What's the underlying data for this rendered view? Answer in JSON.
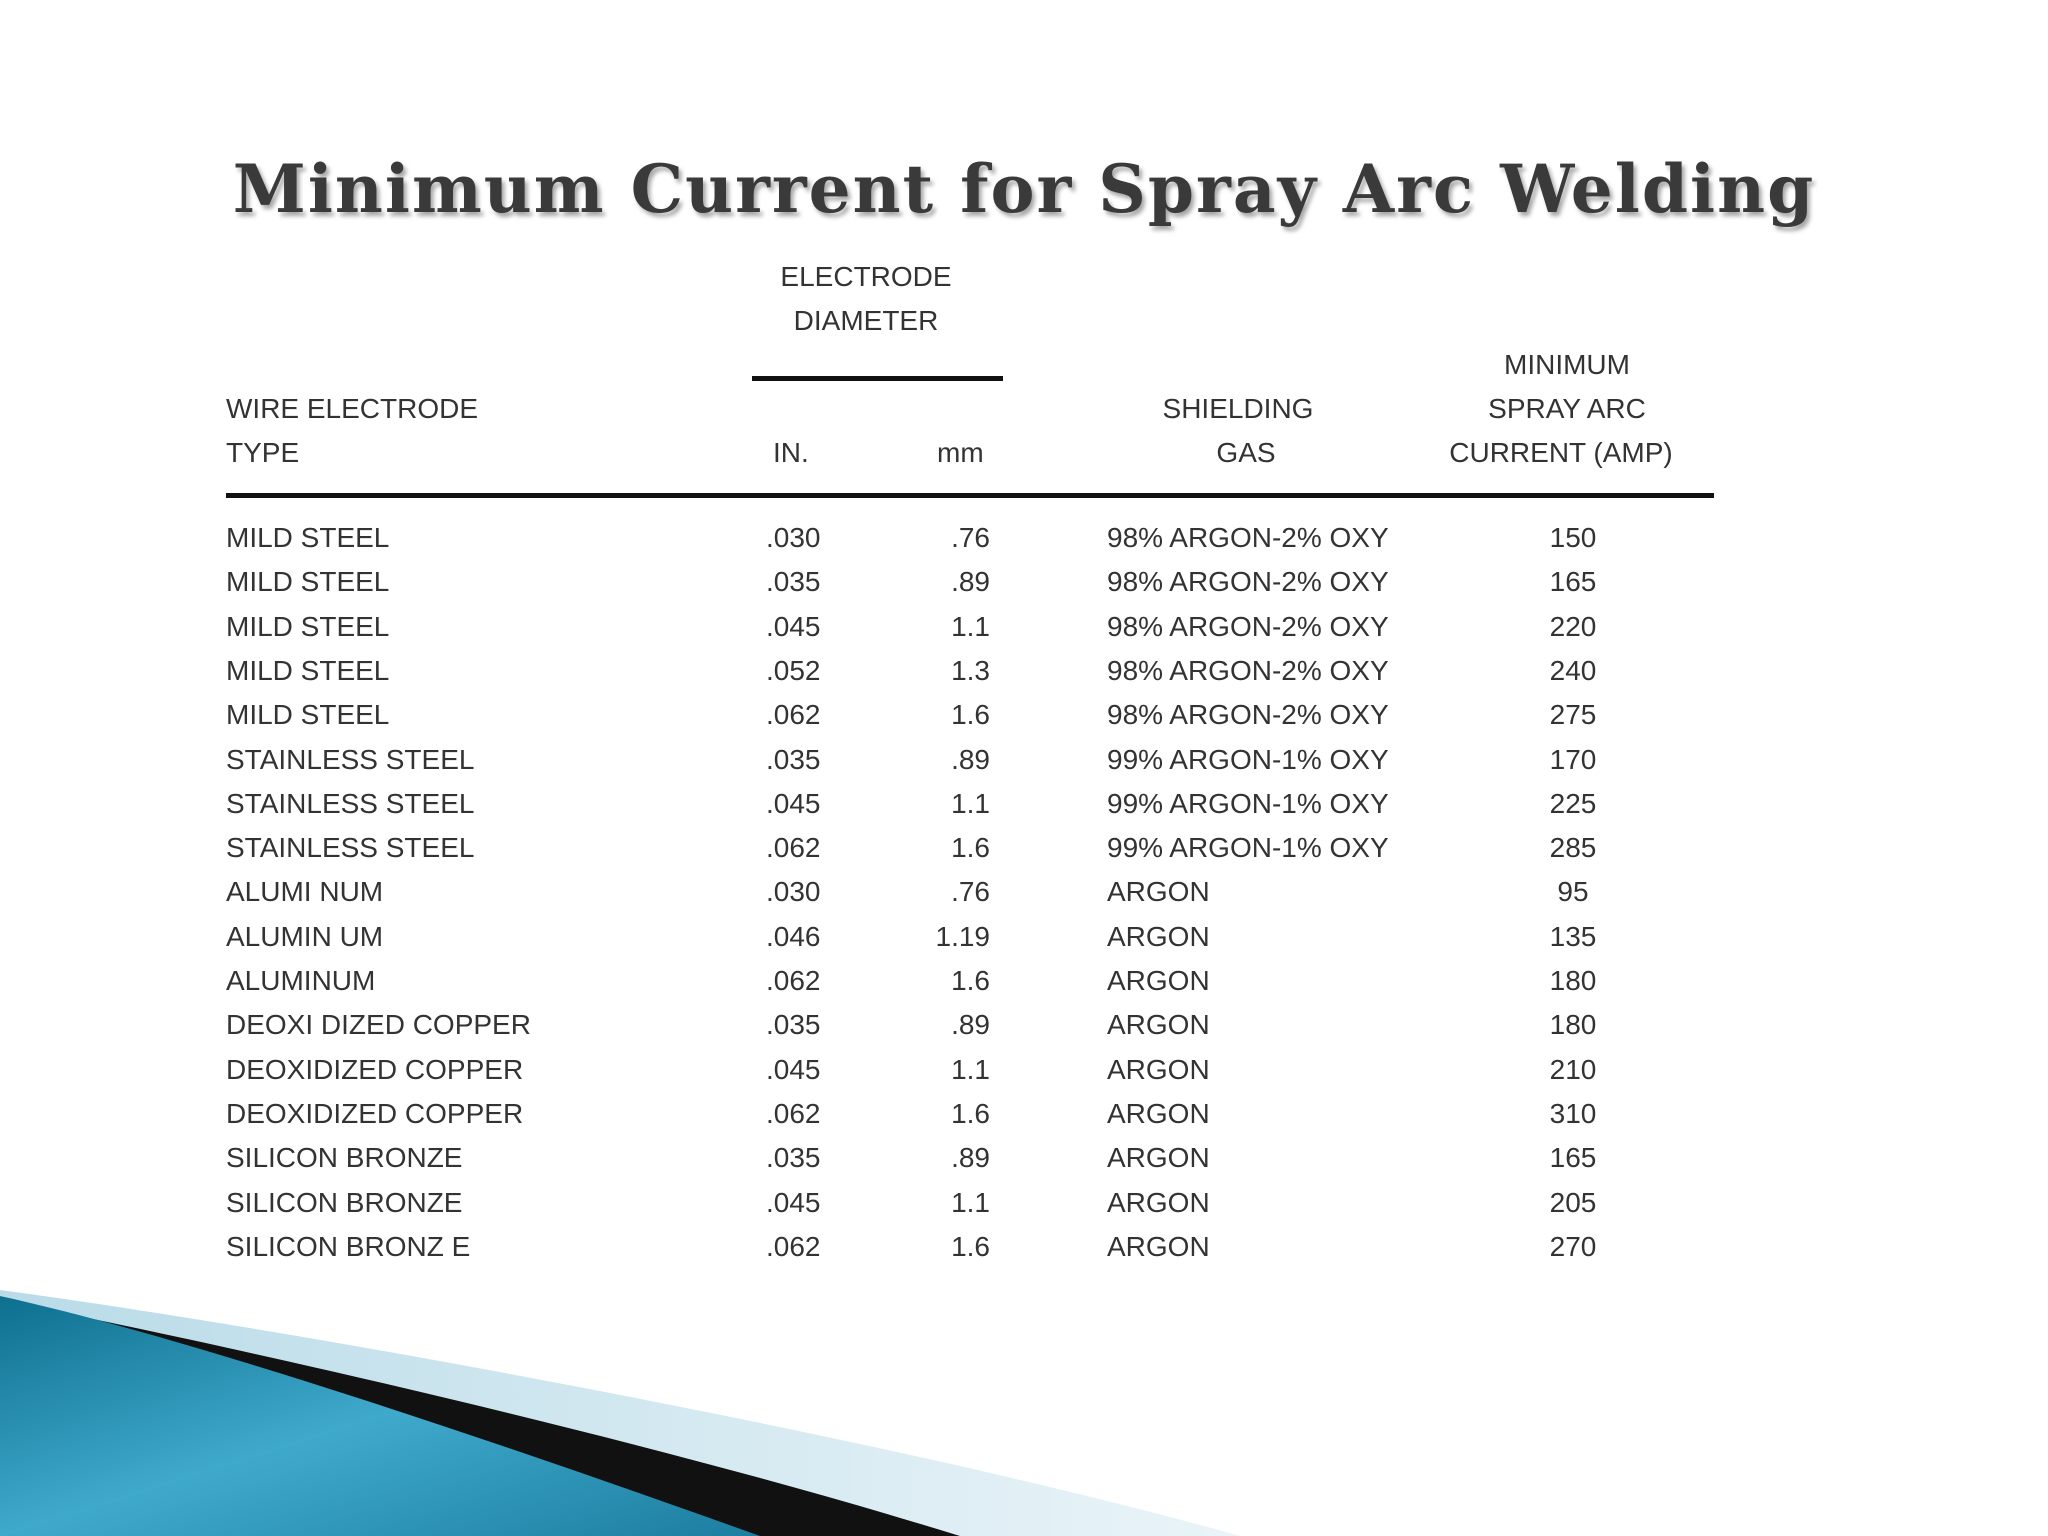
{
  "title": "Minimum Current for Spray Arc Welding",
  "headers": {
    "electrode_diameter_line1": "ELECTRODE",
    "electrode_diameter_line2": "DIAMETER",
    "wire_type_line1": "WIRE  ELECTRODE",
    "wire_type_line2": "TYPE",
    "in": "IN.",
    "mm": "mm",
    "gas_line1": "SHIELDING",
    "gas_line2": "GAS",
    "current_line1": "MINIMUM",
    "current_line2": "SPRAY ARC",
    "current_line3": "CURRENT (AMP)"
  },
  "rows": [
    {
      "type": "MILD STEEL",
      "in": ".030",
      "mm": ".76",
      "gas": "98% ARGON-2% OXY",
      "amp": "150"
    },
    {
      "type": "MILD STEEL",
      "in": ".035",
      "mm": ".89",
      "gas": "98% ARGON-2% OXY",
      "amp": "165"
    },
    {
      "type": "MILD STEEL",
      "in": ".045",
      "mm": "1.1",
      "gas": "98% ARGON-2% OXY",
      "amp": "220"
    },
    {
      "type": "MILD STEEL",
      "in": ".052",
      "mm": "1.3",
      "gas": "98% ARGON-2% OXY",
      "amp": "240"
    },
    {
      "type": "MILD STEEL",
      "in": ".062",
      "mm": "1.6",
      "gas": "98% ARGON-2% OXY",
      "amp": "275"
    },
    {
      "type": "STAINLESS STEEL",
      "in": ".035",
      "mm": ".89",
      "gas": "99% ARGON-1% OXY",
      "amp": "170"
    },
    {
      "type": "STAINLESS STEEL",
      "in": ".045",
      "mm": "1.1",
      "gas": "99% ARGON-1% OXY",
      "amp": "225"
    },
    {
      "type": "STAINLESS STEEL",
      "in": ".062",
      "mm": "1.6",
      "gas": "99% ARGON-1% OXY",
      "amp": "285"
    },
    {
      "type": "ALUMI NUM",
      "in": ".030",
      "mm": ".76",
      "gas": "ARGON",
      "amp": "95"
    },
    {
      "type": "ALUMIN UM",
      "in": ".046",
      "mm": "1.19",
      "gas": "ARGON",
      "amp": "135"
    },
    {
      "type": "ALUMINUM",
      "in": ".062",
      "mm": "1.6",
      "gas": "ARGON",
      "amp": "180"
    },
    {
      "type": "DEOXI DIZED COPPER",
      "in": ".035",
      "mm": ".89",
      "gas": "ARGON",
      "amp": "180"
    },
    {
      "type": "DEOXIDIZED COPPER",
      "in": ".045",
      "mm": "1.1",
      "gas": "ARGON",
      "amp": "210"
    },
    {
      "type": "DEOXIDIZED COPPER",
      "in": ".062",
      "mm": "1.6",
      "gas": "ARGON",
      "amp": "310"
    },
    {
      "type": "SILICON BRONZE",
      "in": ".035",
      "mm": ".89",
      "gas": "ARGON",
      "amp": "165"
    },
    {
      "type": "SILICON BRONZE",
      "in": ".045",
      "mm": "1.1",
      "gas": "ARGON",
      "amp": "205"
    },
    {
      "type": "SILICON BRONZ E",
      "in": ".062",
      "mm": "1.6",
      "gas": "ARGON",
      "amp": "270"
    }
  ],
  "colors": {
    "text": "#333333",
    "rule": "#111111",
    "accent_teal": "#2a8fb0",
    "accent_light": "#cfe6f0"
  }
}
